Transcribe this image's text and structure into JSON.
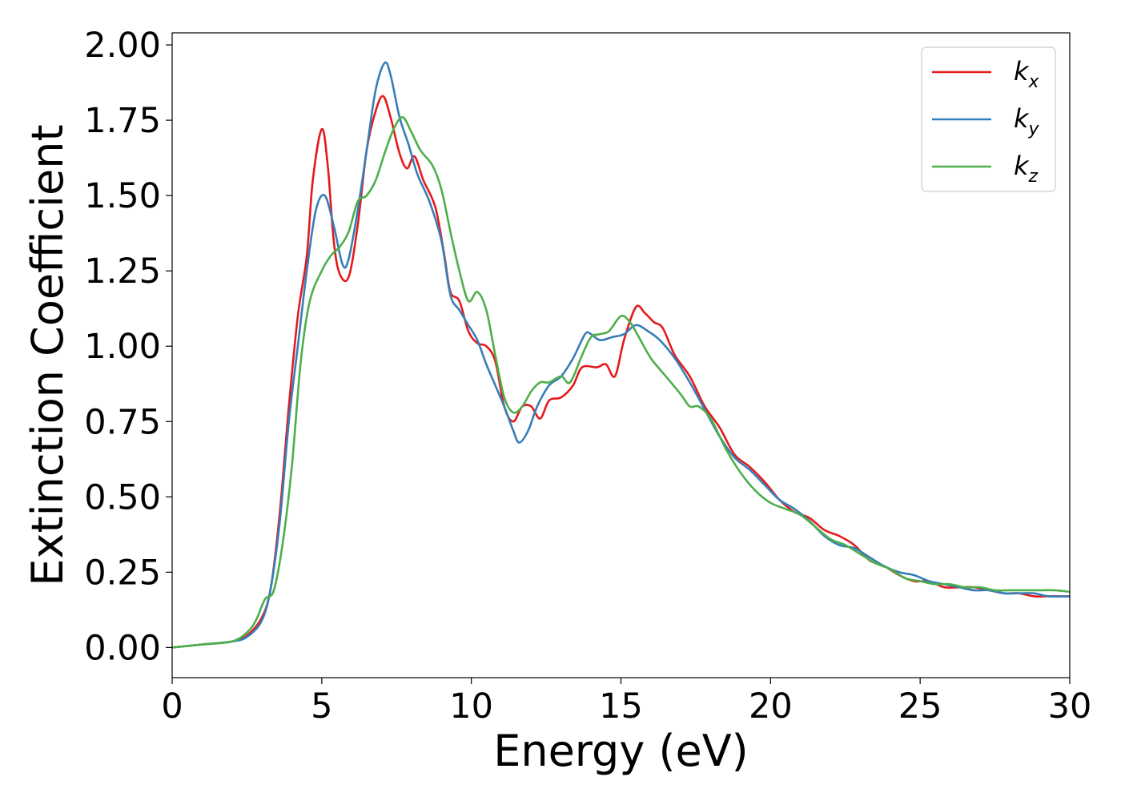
{
  "chart_data": {
    "type": "line",
    "title": "",
    "xlabel": "Energy (eV)",
    "ylabel": "Extinction Coefficient",
    "xlim": [
      0,
      30
    ],
    "ylim": [
      -0.1,
      2.04
    ],
    "xticks": [
      "0",
      "5",
      "10",
      "15",
      "20",
      "25",
      "30"
    ],
    "yticks": [
      "0.00",
      "0.25",
      "0.50",
      "0.75",
      "1.00",
      "1.25",
      "1.50",
      "1.75",
      "2.00"
    ],
    "grid": false,
    "legend_position": "top-right",
    "series": [
      {
        "name": "k_x",
        "label_base": "k",
        "label_sub": "x",
        "color": "#e41a1c",
        "points": [
          [
            0,
            0.0
          ],
          [
            1,
            0.01
          ],
          [
            2,
            0.02
          ],
          [
            2.5,
            0.04
          ],
          [
            3,
            0.1
          ],
          [
            3.3,
            0.2
          ],
          [
            3.6,
            0.45
          ],
          [
            3.9,
            0.8
          ],
          [
            4.2,
            1.1
          ],
          [
            4.5,
            1.3
          ],
          [
            4.7,
            1.55
          ],
          [
            5.0,
            1.72
          ],
          [
            5.2,
            1.6
          ],
          [
            5.4,
            1.35
          ],
          [
            5.6,
            1.24
          ],
          [
            5.9,
            1.23
          ],
          [
            6.2,
            1.4
          ],
          [
            6.5,
            1.65
          ],
          [
            6.8,
            1.78
          ],
          [
            7.05,
            1.83
          ],
          [
            7.3,
            1.76
          ],
          [
            7.6,
            1.64
          ],
          [
            7.85,
            1.59
          ],
          [
            8.1,
            1.63
          ],
          [
            8.4,
            1.55
          ],
          [
            8.8,
            1.46
          ],
          [
            9.1,
            1.3
          ],
          [
            9.3,
            1.18
          ],
          [
            9.6,
            1.15
          ],
          [
            9.9,
            1.05
          ],
          [
            10.2,
            1.01
          ],
          [
            10.5,
            1.0
          ],
          [
            10.8,
            0.95
          ],
          [
            11.1,
            0.8
          ],
          [
            11.4,
            0.75
          ],
          [
            11.7,
            0.8
          ],
          [
            12.0,
            0.8
          ],
          [
            12.3,
            0.76
          ],
          [
            12.6,
            0.82
          ],
          [
            13.0,
            0.83
          ],
          [
            13.4,
            0.87
          ],
          [
            13.7,
            0.93
          ],
          [
            14.2,
            0.93
          ],
          [
            14.5,
            0.94
          ],
          [
            14.8,
            0.9
          ],
          [
            15.1,
            1.02
          ],
          [
            15.5,
            1.13
          ],
          [
            15.8,
            1.11
          ],
          [
            16.1,
            1.08
          ],
          [
            16.4,
            1.06
          ],
          [
            16.8,
            0.97
          ],
          [
            17.3,
            0.9
          ],
          [
            17.8,
            0.8
          ],
          [
            18.3,
            0.73
          ],
          [
            18.8,
            0.64
          ],
          [
            19.3,
            0.6
          ],
          [
            19.8,
            0.55
          ],
          [
            20.3,
            0.49
          ],
          [
            20.8,
            0.45
          ],
          [
            21.3,
            0.43
          ],
          [
            21.8,
            0.39
          ],
          [
            22.3,
            0.37
          ],
          [
            22.8,
            0.34
          ],
          [
            23.3,
            0.29
          ],
          [
            23.8,
            0.27
          ],
          [
            24.3,
            0.24
          ],
          [
            24.8,
            0.22
          ],
          [
            25.3,
            0.22
          ],
          [
            25.8,
            0.2
          ],
          [
            26.3,
            0.2
          ],
          [
            26.8,
            0.2
          ],
          [
            27.3,
            0.19
          ],
          [
            27.8,
            0.18
          ],
          [
            28.3,
            0.18
          ],
          [
            28.8,
            0.17
          ],
          [
            29.3,
            0.17
          ],
          [
            30.0,
            0.17
          ]
        ]
      },
      {
        "name": "k_y",
        "label_base": "k",
        "label_sub": "y",
        "color": "#377eb8",
        "points": [
          [
            0,
            0.0
          ],
          [
            1,
            0.01
          ],
          [
            2,
            0.02
          ],
          [
            2.5,
            0.035
          ],
          [
            3,
            0.09
          ],
          [
            3.3,
            0.2
          ],
          [
            3.6,
            0.42
          ],
          [
            3.9,
            0.75
          ],
          [
            4.2,
            1.0
          ],
          [
            4.5,
            1.25
          ],
          [
            4.8,
            1.45
          ],
          [
            5.1,
            1.5
          ],
          [
            5.4,
            1.4
          ],
          [
            5.7,
            1.27
          ],
          [
            5.9,
            1.29
          ],
          [
            6.2,
            1.45
          ],
          [
            6.5,
            1.65
          ],
          [
            6.8,
            1.85
          ],
          [
            7.1,
            1.94
          ],
          [
            7.3,
            1.9
          ],
          [
            7.6,
            1.76
          ],
          [
            7.9,
            1.67
          ],
          [
            8.2,
            1.57
          ],
          [
            8.6,
            1.48
          ],
          [
            9.0,
            1.35
          ],
          [
            9.3,
            1.17
          ],
          [
            9.6,
            1.12
          ],
          [
            9.9,
            1.07
          ],
          [
            10.2,
            1.02
          ],
          [
            10.5,
            0.94
          ],
          [
            10.8,
            0.87
          ],
          [
            11.1,
            0.8
          ],
          [
            11.4,
            0.72
          ],
          [
            11.6,
            0.68
          ],
          [
            11.9,
            0.72
          ],
          [
            12.2,
            0.8
          ],
          [
            12.6,
            0.87
          ],
          [
            13.0,
            0.9
          ],
          [
            13.4,
            0.96
          ],
          [
            13.8,
            1.04
          ],
          [
            14.0,
            1.04
          ],
          [
            14.3,
            1.02
          ],
          [
            14.7,
            1.03
          ],
          [
            15.1,
            1.04
          ],
          [
            15.5,
            1.07
          ],
          [
            15.9,
            1.05
          ],
          [
            16.3,
            1.02
          ],
          [
            16.8,
            0.96
          ],
          [
            17.3,
            0.88
          ],
          [
            17.8,
            0.79
          ],
          [
            18.3,
            0.7
          ],
          [
            18.8,
            0.63
          ],
          [
            19.3,
            0.59
          ],
          [
            19.8,
            0.54
          ],
          [
            20.3,
            0.49
          ],
          [
            20.8,
            0.46
          ],
          [
            21.3,
            0.42
          ],
          [
            21.8,
            0.37
          ],
          [
            22.3,
            0.34
          ],
          [
            22.8,
            0.33
          ],
          [
            23.3,
            0.3
          ],
          [
            23.8,
            0.27
          ],
          [
            24.3,
            0.25
          ],
          [
            24.8,
            0.24
          ],
          [
            25.3,
            0.22
          ],
          [
            25.8,
            0.21
          ],
          [
            26.3,
            0.2
          ],
          [
            26.8,
            0.19
          ],
          [
            27.3,
            0.19
          ],
          [
            27.8,
            0.18
          ],
          [
            28.3,
            0.18
          ],
          [
            28.8,
            0.18
          ],
          [
            29.3,
            0.17
          ],
          [
            30.0,
            0.17
          ]
        ]
      },
      {
        "name": "k_z",
        "label_base": "k",
        "label_sub": "z",
        "color": "#4daf4a",
        "points": [
          [
            0,
            0.0
          ],
          [
            1,
            0.01
          ],
          [
            2,
            0.02
          ],
          [
            2.5,
            0.05
          ],
          [
            2.8,
            0.09
          ],
          [
            3.1,
            0.16
          ],
          [
            3.4,
            0.19
          ],
          [
            3.7,
            0.35
          ],
          [
            4.0,
            0.6
          ],
          [
            4.3,
            0.95
          ],
          [
            4.6,
            1.15
          ],
          [
            5.0,
            1.25
          ],
          [
            5.3,
            1.3
          ],
          [
            5.6,
            1.33
          ],
          [
            5.9,
            1.38
          ],
          [
            6.2,
            1.48
          ],
          [
            6.5,
            1.5
          ],
          [
            6.8,
            1.55
          ],
          [
            7.1,
            1.64
          ],
          [
            7.4,
            1.72
          ],
          [
            7.7,
            1.76
          ],
          [
            8.0,
            1.71
          ],
          [
            8.3,
            1.65
          ],
          [
            8.7,
            1.6
          ],
          [
            9.0,
            1.52
          ],
          [
            9.3,
            1.38
          ],
          [
            9.6,
            1.25
          ],
          [
            9.9,
            1.15
          ],
          [
            10.2,
            1.18
          ],
          [
            10.5,
            1.12
          ],
          [
            10.8,
            0.97
          ],
          [
            11.1,
            0.83
          ],
          [
            11.4,
            0.78
          ],
          [
            11.7,
            0.8
          ],
          [
            12.0,
            0.85
          ],
          [
            12.3,
            0.88
          ],
          [
            12.6,
            0.88
          ],
          [
            13.0,
            0.9
          ],
          [
            13.3,
            0.88
          ],
          [
            13.7,
            0.97
          ],
          [
            14.0,
            1.03
          ],
          [
            14.3,
            1.04
          ],
          [
            14.6,
            1.05
          ],
          [
            15.0,
            1.1
          ],
          [
            15.3,
            1.08
          ],
          [
            15.6,
            1.03
          ],
          [
            16.0,
            0.96
          ],
          [
            16.5,
            0.9
          ],
          [
            17.0,
            0.84
          ],
          [
            17.3,
            0.8
          ],
          [
            17.6,
            0.8
          ],
          [
            18.0,
            0.76
          ],
          [
            18.5,
            0.66
          ],
          [
            19.0,
            0.58
          ],
          [
            19.5,
            0.52
          ],
          [
            20.0,
            0.48
          ],
          [
            20.5,
            0.46
          ],
          [
            21.0,
            0.44
          ],
          [
            21.5,
            0.4
          ],
          [
            22.0,
            0.36
          ],
          [
            22.5,
            0.34
          ],
          [
            23.0,
            0.31
          ],
          [
            23.5,
            0.28
          ],
          [
            24.0,
            0.26
          ],
          [
            24.5,
            0.23
          ],
          [
            25.0,
            0.22
          ],
          [
            25.5,
            0.21
          ],
          [
            26.0,
            0.21
          ],
          [
            26.5,
            0.2
          ],
          [
            27.0,
            0.2
          ],
          [
            27.5,
            0.19
          ],
          [
            28.0,
            0.19
          ],
          [
            28.5,
            0.19
          ],
          [
            29.0,
            0.19
          ],
          [
            29.5,
            0.19
          ],
          [
            30.0,
            0.185
          ]
        ]
      }
    ]
  }
}
